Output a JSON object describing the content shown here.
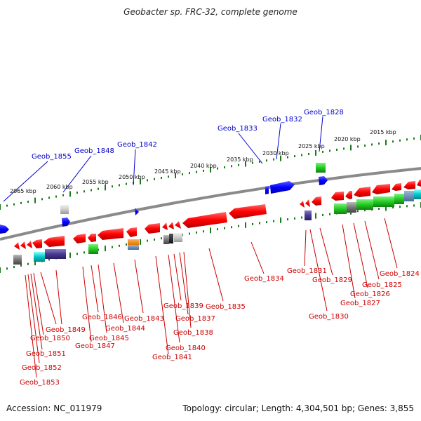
{
  "title": "Geobacter sp. FRC-32, complete genome",
  "footer": {
    "accession": "Accession: NC_011979",
    "topology": "Topology: circular; Length: 4,304,501 bp; Genes: 3,855"
  },
  "scale_labels": [
    "2065 kbp",
    "2060 kbp",
    "2055 kbp",
    "2050 kbp",
    "2045 kbp",
    "2040 kbp",
    "2035 kbp",
    "2030 kbp",
    "2025 kbp",
    "2020 kbp",
    "2015 kbp"
  ],
  "top_genes": [
    "Geob_1855",
    "Geob_1848",
    "Geob_1842",
    "Geob_1833",
    "Geob_1832",
    "Geob_1828"
  ],
  "bottom_genes": [
    "Geob_1853",
    "Geob_1852",
    "Geob_1851",
    "Geob_1850",
    "Geob_1849",
    "Geob_1847",
    "Geob_1846",
    "Geob_1845",
    "Geob_1844",
    "Geob_1843",
    "Geob_1841",
    "Geob_1840",
    "Geob_1839",
    "Geob_1838",
    "Geob_1837",
    "Geob_1835",
    "Geob_1834",
    "Geob_1831",
    "Geob_1830",
    "Geob_1829",
    "Geob_1827",
    "Geob_1826",
    "Geob_1825",
    "Geob_1824"
  ],
  "colors": {
    "forward_strand": "#0000ff",
    "reverse_strand": "#ff0000",
    "backbone": "#888888",
    "ticks": "#1a7a1a",
    "label_forward": "#0000cc",
    "label_reverse": "#cc0000"
  }
}
